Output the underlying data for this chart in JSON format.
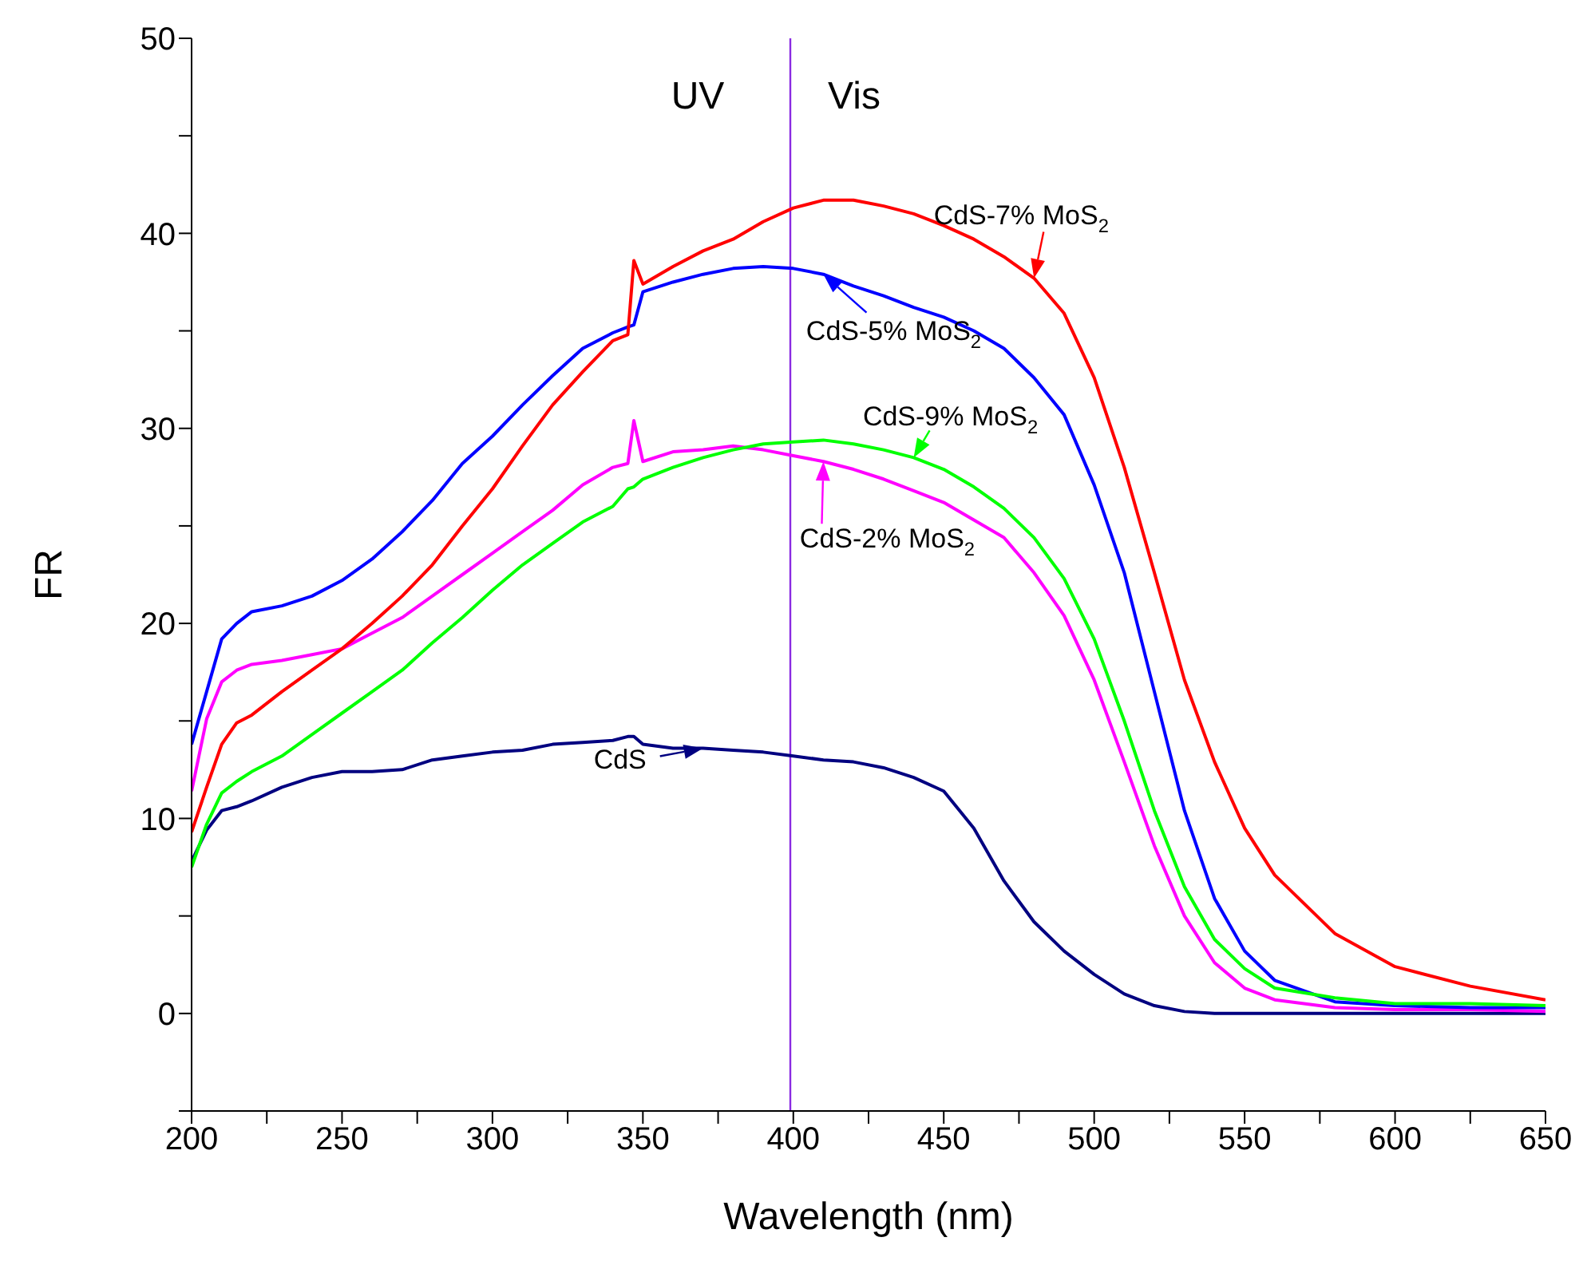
{
  "chart_data": {
    "type": "line",
    "xlabel": "Wavelength (nm)",
    "ylabel": "FR",
    "x": [
      200,
      205,
      210,
      215,
      220,
      230,
      240,
      250,
      260,
      270,
      280,
      290,
      300,
      310,
      320,
      330,
      340,
      345,
      347,
      350,
      360,
      370,
      380,
      390,
      400,
      410,
      420,
      430,
      440,
      450,
      460,
      470,
      480,
      490,
      500,
      510,
      520,
      530,
      540,
      550,
      560,
      580,
      600,
      625,
      650
    ],
    "series": [
      {
        "color": "#000080",
        "values": [
          7.8,
          9.4,
          10.4,
          10.6,
          10.9,
          11.6,
          12.1,
          12.4,
          12.4,
          12.5,
          13.0,
          13.2,
          13.4,
          13.5,
          13.8,
          13.9,
          14.0,
          14.2,
          14.2,
          13.8,
          13.6,
          13.6,
          13.5,
          13.4,
          13.2,
          13.0,
          12.9,
          12.6,
          12.1,
          11.4,
          9.5,
          6.8,
          4.7,
          3.2,
          2.0,
          1.0,
          0.4,
          0.1,
          0.0,
          0.0,
          0.0,
          0.0,
          0.0,
          0.0,
          0.0
        ]
      },
      {
        "color": "#ff00ff",
        "values": [
          11.4,
          15.1,
          17.0,
          17.6,
          17.9,
          18.1,
          18.4,
          18.7,
          19.5,
          20.3,
          21.4,
          22.5,
          23.6,
          24.7,
          25.8,
          27.1,
          28.0,
          28.2,
          30.4,
          28.3,
          28.8,
          28.9,
          29.1,
          28.9,
          28.6,
          28.3,
          27.9,
          27.4,
          26.8,
          26.2,
          25.3,
          24.4,
          22.6,
          20.4,
          17.1,
          12.9,
          8.6,
          5.0,
          2.6,
          1.3,
          0.7,
          0.3,
          0.2,
          0.2,
          0.1
        ]
      },
      {
        "color": "#0000ff",
        "values": [
          13.8,
          16.5,
          19.2,
          20.0,
          20.6,
          20.9,
          21.4,
          22.2,
          23.3,
          24.7,
          26.3,
          28.2,
          29.6,
          31.2,
          32.7,
          34.1,
          34.9,
          35.2,
          35.3,
          37.0,
          37.5,
          37.9,
          38.2,
          38.3,
          38.2,
          37.9,
          37.3,
          36.8,
          36.2,
          35.7,
          35.0,
          34.1,
          32.6,
          30.7,
          27.1,
          22.6,
          16.5,
          10.4,
          5.9,
          3.2,
          1.7,
          0.6,
          0.4,
          0.3,
          0.3
        ]
      },
      {
        "color": "#ff0000",
        "values": [
          9.3,
          11.6,
          13.8,
          14.9,
          15.3,
          16.5,
          17.6,
          18.7,
          20.0,
          21.4,
          23.0,
          25.0,
          26.9,
          29.1,
          31.2,
          32.9,
          34.5,
          34.8,
          38.6,
          37.4,
          38.3,
          39.1,
          39.7,
          40.6,
          41.3,
          41.7,
          41.7,
          41.4,
          41.0,
          40.4,
          39.7,
          38.8,
          37.7,
          35.9,
          32.6,
          28.0,
          22.6,
          17.1,
          12.9,
          9.5,
          7.1,
          4.1,
          2.4,
          1.4,
          0.7
        ]
      },
      {
        "color": "#00ff00",
        "values": [
          7.5,
          9.7,
          11.3,
          11.9,
          12.4,
          13.2,
          14.3,
          15.4,
          16.5,
          17.6,
          19.0,
          20.3,
          21.7,
          23.0,
          24.1,
          25.2,
          26.0,
          26.9,
          27.0,
          27.4,
          28.0,
          28.5,
          28.9,
          29.2,
          29.3,
          29.4,
          29.2,
          28.9,
          28.5,
          27.9,
          27.0,
          25.9,
          24.4,
          22.3,
          19.2,
          15.0,
          10.4,
          6.5,
          3.8,
          2.3,
          1.3,
          0.8,
          0.5,
          0.5,
          0.4
        ]
      }
    ],
    "xlim": [
      200,
      650
    ],
    "xticks": [
      200,
      {
        "value": 225,
        "label": null
      },
      250,
      {
        "value": 275,
        "label": null
      },
      300,
      {
        "value": 325,
        "label": null
      },
      350,
      {
        "value": 375,
        "label": null
      },
      400,
      {
        "value": 425,
        "label": null
      },
      450,
      {
        "value": 475,
        "label": null
      },
      500,
      {
        "value": 525,
        "label": null
      },
      550,
      {
        "value": 575,
        "label": null
      },
      600,
      {
        "value": 625,
        "label": null
      },
      650
    ],
    "ylim": [
      -5,
      50
    ],
    "yticks": [
      {
        "value": -5,
        "label": null
      },
      0,
      {
        "value": 5,
        "label": null
      },
      10,
      {
        "value": 15,
        "label": null
      },
      20,
      {
        "value": 25,
        "label": null
      },
      30,
      {
        "value": 35,
        "label": null
      },
      40,
      {
        "value": 45,
        "label": null
      },
      50
    ],
    "ref_lines": [
      {
        "axis": "x",
        "value": 399,
        "color": "#8a2be2"
      }
    ],
    "annotations": [
      "UV",
      "Vis",
      {
        "text": "CdS-7% MoS$_{2}$",
        "x": 480,
        "y": 37.7
      },
      {
        "text": "CdS-5% MoS$_{2}$",
        "x": 410,
        "y": 37.9
      },
      {
        "text": "CdS-9% MoS$_{2}$",
        "x": 440,
        "y": 28.5
      },
      {
        "text": "CdS-2% MoS$_{2}$",
        "x": 410,
        "y": 28.3
      },
      {
        "text": "CdS",
        "x": 370,
        "y": 13.6
      }
    ],
    "grid": false,
    "legend": false,
    "marker": "none",
    "line_style": "solid"
  }
}
